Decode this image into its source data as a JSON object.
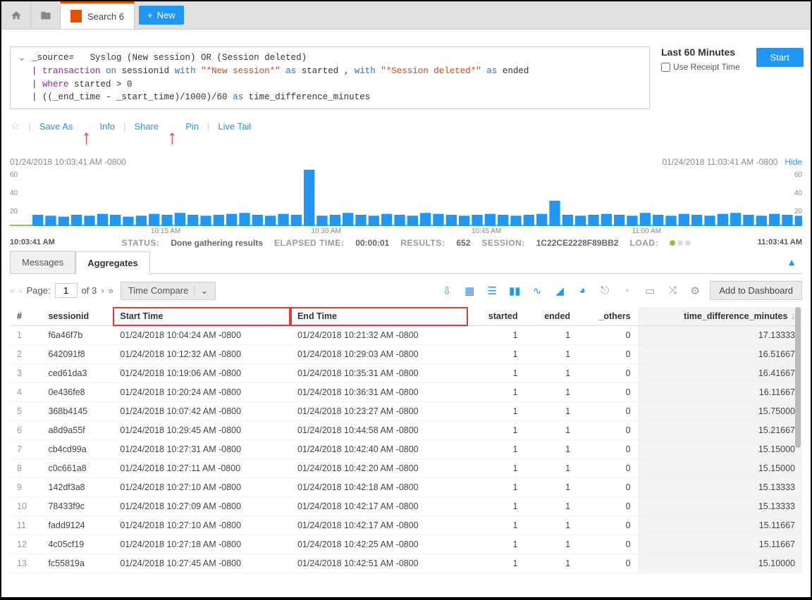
{
  "topbar": {
    "search_tab_label": "Search 6",
    "new_label": "New"
  },
  "query": {
    "line1_pre": "_source=",
    "line1_post": "Syslog (New session) OR (Session deleted)",
    "line2_a": "transaction",
    "line2_b": "on",
    "line2_c": "sessionid",
    "line2_d": "with",
    "line2_e": "\"*New session*\"",
    "line2_f": "as",
    "line2_g": "started ,",
    "line2_h": "with",
    "line2_i": "\"*Session deleted*\"",
    "line2_j": "as",
    "line2_k": "ended",
    "line3_a": "where",
    "line3_b": "started > 0",
    "line4_a": "((_end_time - _start_time)/1000)/60",
    "line4_b": "as",
    "line4_c": "time_difference_minutes"
  },
  "time": {
    "title": "Last 60 Minutes",
    "receipt_label": "Use Receipt Time",
    "start_btn": "Start"
  },
  "actions": {
    "save_as": "Save As",
    "info": "Info",
    "share": "Share",
    "pin": "Pin",
    "live_tail": "Live Tail"
  },
  "chart": {
    "from": "01/24/2018 10:03:41 AM -0800",
    "to": "01/24/2018 11:03:41 AM -0800",
    "hide": "Hide",
    "range_start": "10:03:41 AM",
    "range_end": "11:03:41 AM",
    "y": {
      "y60": "60",
      "y40": "40",
      "y20": "20"
    },
    "x": {
      "a": "10:15 AM",
      "b": "10:30 AM",
      "c": "10:45 AM",
      "d": "11:00 AM"
    },
    "bars": [
      12,
      11,
      10,
      12,
      11,
      13,
      12,
      10,
      11,
      13,
      12,
      14,
      12,
      11,
      12,
      13,
      14,
      12,
      11,
      13,
      12,
      60,
      11,
      12,
      14,
      12,
      11,
      13,
      12,
      11,
      14,
      13,
      12,
      11,
      12,
      13,
      12,
      11,
      12,
      13,
      27,
      12,
      11,
      12,
      13,
      12,
      11,
      14,
      12,
      11,
      13,
      12,
      11,
      13,
      14,
      12,
      11,
      13,
      12,
      11
    ],
    "bar_color": "#2196f3",
    "grid_color": "#fff",
    "background_color": "#fff"
  },
  "status": {
    "status_lbl": "STATUS:",
    "status_val": "Done gathering results",
    "elapsed_lbl": "ELAPSED TIME:",
    "elapsed_val": "00:00:01",
    "results_lbl": "RESULTS:",
    "results_val": "652",
    "session_lbl": "SESSION:",
    "session_val": "1C22CE2228F89BB2",
    "load_lbl": "LOAD:"
  },
  "tabs": {
    "messages": "Messages",
    "aggregates": "Aggregates"
  },
  "toolbar": {
    "page_lbl": "Page:",
    "page_no": "1",
    "of_lbl": "of 3",
    "time_compare": "Time Compare",
    "add_dash": "Add to Dashboard"
  },
  "table": {
    "headers": {
      "h0": "#",
      "h1": "sessionid",
      "h2": "Start Time",
      "h3": "End Time",
      "h4": "started",
      "h5": "ended",
      "h6": "_others",
      "h7": "time_difference_minutes"
    },
    "rows": [
      {
        "n": "1",
        "sid": "f6a46f7b",
        "st": "01/24/2018 10:04:24 AM -0800",
        "et": "01/24/2018 10:21:32 AM -0800",
        "s": "1",
        "e": "1",
        "o": "0",
        "t": "17.13333"
      },
      {
        "n": "2",
        "sid": "642091f8",
        "st": "01/24/2018 10:12:32 AM -0800",
        "et": "01/24/2018 10:29:03 AM -0800",
        "s": "1",
        "e": "1",
        "o": "0",
        "t": "16.51667"
      },
      {
        "n": "3",
        "sid": "ced61da3",
        "st": "01/24/2018 10:19:06 AM -0800",
        "et": "01/24/2018 10:35:31 AM -0800",
        "s": "1",
        "e": "1",
        "o": "0",
        "t": "16.41667"
      },
      {
        "n": "4",
        "sid": "0e436fe8",
        "st": "01/24/2018 10:20:24 AM -0800",
        "et": "01/24/2018 10:36:31 AM -0800",
        "s": "1",
        "e": "1",
        "o": "0",
        "t": "16.11667"
      },
      {
        "n": "5",
        "sid": "368b4145",
        "st": "01/24/2018 10:07:42 AM -0800",
        "et": "01/24/2018 10:23:27 AM -0800",
        "s": "1",
        "e": "1",
        "o": "0",
        "t": "15.75000"
      },
      {
        "n": "6",
        "sid": "a8d9a55f",
        "st": "01/24/2018 10:29:45 AM -0800",
        "et": "01/24/2018 10:44:58 AM -0800",
        "s": "1",
        "e": "1",
        "o": "0",
        "t": "15.21667"
      },
      {
        "n": "7",
        "sid": "cb4cd99a",
        "st": "01/24/2018 10:27:31 AM -0800",
        "et": "01/24/2018 10:42:40 AM -0800",
        "s": "1",
        "e": "1",
        "o": "0",
        "t": "15.15000"
      },
      {
        "n": "8",
        "sid": "c0c661a8",
        "st": "01/24/2018 10:27:11 AM -0800",
        "et": "01/24/2018 10:42:20 AM -0800",
        "s": "1",
        "e": "1",
        "o": "0",
        "t": "15.15000"
      },
      {
        "n": "9",
        "sid": "142df3a8",
        "st": "01/24/2018 10:27:10 AM -0800",
        "et": "01/24/2018 10:42:18 AM -0800",
        "s": "1",
        "e": "1",
        "o": "0",
        "t": "15.13333"
      },
      {
        "n": "10",
        "sid": "78433f9c",
        "st": "01/24/2018 10:27:09 AM -0800",
        "et": "01/24/2018 10:42:17 AM -0800",
        "s": "1",
        "e": "1",
        "o": "0",
        "t": "15.13333"
      },
      {
        "n": "11",
        "sid": "fadd9124",
        "st": "01/24/2018 10:27:10 AM -0800",
        "et": "01/24/2018 10:42:17 AM -0800",
        "s": "1",
        "e": "1",
        "o": "0",
        "t": "15.11667"
      },
      {
        "n": "12",
        "sid": "4c05cf19",
        "st": "01/24/2018 10:27:18 AM -0800",
        "et": "01/24/2018 10:42:25 AM -0800",
        "s": "1",
        "e": "1",
        "o": "0",
        "t": "15.11667"
      },
      {
        "n": "13",
        "sid": "fc55819a",
        "st": "01/24/2018 10:27:45 AM -0800",
        "et": "01/24/2018 10:42:51 AM -0800",
        "s": "1",
        "e": "1",
        "o": "0",
        "t": "15.10000"
      }
    ]
  }
}
